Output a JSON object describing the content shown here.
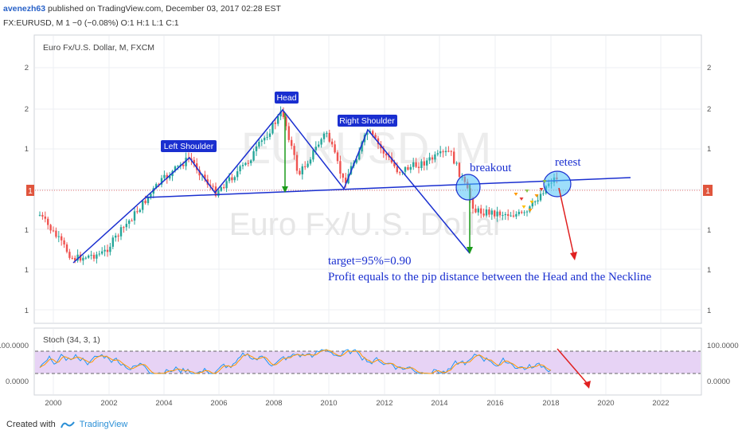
{
  "header": {
    "author": "avenezh63",
    "published_text": "published on TradingView.com, December 03, 2017 02:28 EST",
    "symbol_line": "FX:EURUSD, M 1 −0 (−0.08%) O:1 H:1 L:1 C:1"
  },
  "chart": {
    "legend": "Euro Fx/U.S. Dollar, M, FXCM",
    "watermark_symbol": "EURUSD, M",
    "watermark_name": "Euro Fx/U.S. Dollar",
    "price_labels": [
      "2",
      "2",
      "1",
      "1",
      "1",
      "1",
      "1"
    ],
    "current_price_tag": "1",
    "colors": {
      "up": "#26a69a",
      "down": "#ef5350",
      "pattern": "#1a2fd0",
      "annotation": "#1a2fd0",
      "target_arrow": "#1a9a1a",
      "projection": "#e02020"
    }
  },
  "annotations": {
    "left_shoulder": "Left Shoulder",
    "head": "Head",
    "right_shoulder": "Right Shoulder",
    "breakout": "breakout",
    "retest": "retest",
    "target": "target=95%=0.90",
    "profit": "Profit equals to the pip distance between the Head and the Neckline"
  },
  "oscillator": {
    "legend": "Stoch (34, 3, 1)",
    "labels": [
      "100.0000",
      "0.0000"
    ]
  },
  "x_axis": [
    "2000",
    "2002",
    "2004",
    "2006",
    "2008",
    "2010",
    "2012",
    "2014",
    "2016",
    "2018",
    "2020",
    "2022"
  ],
  "footer": {
    "created_with": "Created with",
    "brand": "TradingView"
  }
}
